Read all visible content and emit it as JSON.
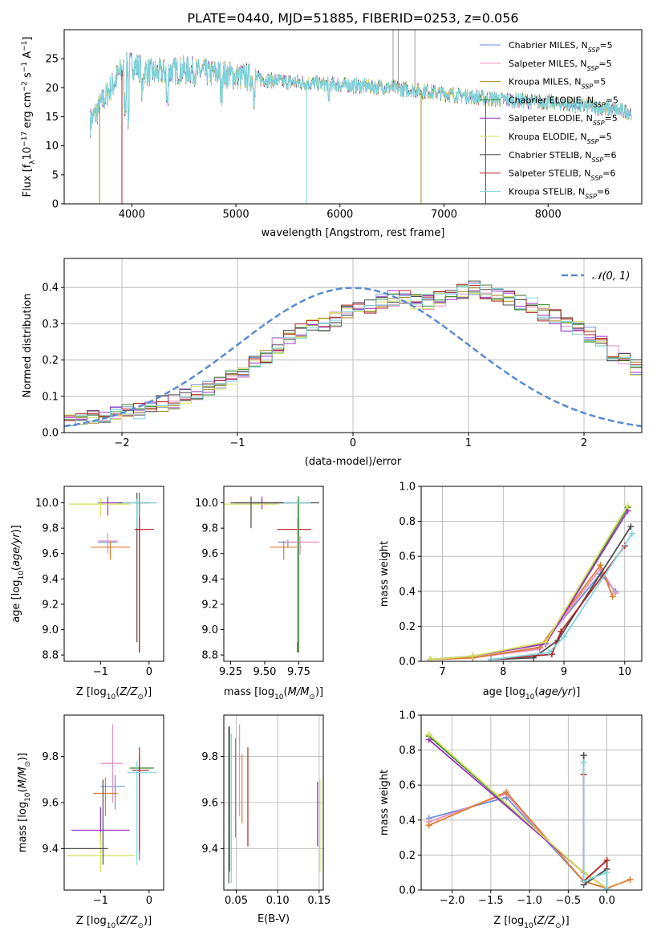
{
  "colors": {
    "series": [
      "#6d8fd6",
      "#e88fc0",
      "#a8861d",
      "#2e8b2e",
      "#9b30c9",
      "#d4e05a",
      "#4d4d4d",
      "#b22222",
      "#7fd3dc"
    ],
    "norm": "#5b8bd0",
    "extra_mass": [
      "#6d8fd6",
      "#e88fc0",
      "#e07b2b",
      "#2e8b2e",
      "#9b30c9",
      "#d4e05a",
      "#4d4d4d",
      "#b22222",
      "#7fd3dc"
    ]
  },
  "chart_data": [
    {
      "id": "spectrum",
      "type": "line",
      "title": "PLATE=0440, MJD=51885, FIBERID=0253, z=0.056",
      "xlabel": "wavelength [Angstrom, rest frame]",
      "ylabel": "Flux [f$_\\lambda$10$^{-17}$ erg cm$^{-2}$ s$^{-1}$ A$^{-1}$]",
      "ylabel_parts": {
        "a": "Flux [f",
        "b": "λ",
        "c": "10",
        "d": "−17",
        "e": " erg cm",
        "f": "−2",
        "g": " s",
        "h": "−1",
        "i": " A",
        "j": "−1",
        "k": "]"
      },
      "xlim": [
        3350,
        8900
      ],
      "ylim": [
        0,
        30
      ],
      "xticks": [
        4000,
        5000,
        6000,
        7000,
        8000
      ],
      "yticks": [
        0,
        5,
        10,
        15,
        20,
        25
      ],
      "grid": false,
      "legend_position": "top-right",
      "legend": [
        {
          "name": "Chabrier MILES, N",
          "sub": "SSP",
          "tail": "=5"
        },
        {
          "name": "Salpeter MILES, N",
          "sub": "SSP",
          "tail": "=5"
        },
        {
          "name": "Kroupa MILES, N",
          "sub": "SSP",
          "tail": "=5"
        },
        {
          "name": "Chabrier ELODIE, N",
          "sub": "SSP",
          "tail": "=5"
        },
        {
          "name": "Salpeter ELODIE, N",
          "sub": "SSP",
          "tail": "=5"
        },
        {
          "name": "Kroupa ELODIE, N",
          "sub": "SSP",
          "tail": "=5"
        },
        {
          "name": "Chabrier STELIB, N",
          "sub": "SSP",
          "tail": "=6"
        },
        {
          "name": "Salpeter STELIB, N",
          "sub": "SSP",
          "tail": "=6"
        },
        {
          "name": "Kroupa STELIB, N",
          "sub": "SSP",
          "tail": "=6"
        }
      ],
      "continuum": [
        [
          3600,
          14
        ],
        [
          3700,
          17
        ],
        [
          3800,
          20
        ],
        [
          3900,
          23
        ],
        [
          4000,
          24
        ],
        [
          4200,
          22.5
        ],
        [
          4500,
          23
        ],
        [
          4800,
          22.5
        ],
        [
          5000,
          22
        ],
        [
          5500,
          21
        ],
        [
          6000,
          20.5
        ],
        [
          6500,
          20
        ],
        [
          7000,
          19
        ],
        [
          7500,
          18
        ],
        [
          8000,
          17.5
        ],
        [
          8500,
          16.5
        ],
        [
          8800,
          15.8
        ]
      ],
      "spikes": [
        [
          3690,
          0
        ],
        [
          3905,
          0
        ],
        [
          5680,
          0
        ],
        [
          6780,
          0
        ],
        [
          7400,
          0
        ],
        [
          6560,
          30
        ],
        [
          6720,
          30
        ],
        [
          6510,
          30
        ]
      ]
    },
    {
      "id": "residuals",
      "type": "step",
      "xlabel": "(data-model)/error",
      "ylabel": "Normed distribution",
      "xlim": [
        -2.5,
        2.5
      ],
      "ylim": [
        0,
        0.48
      ],
      "xticks": [
        -2,
        -1,
        0,
        1,
        2
      ],
      "yticks": [
        0.0,
        0.1,
        0.2,
        0.3,
        0.4
      ],
      "grid": true,
      "legend_position": "top-right",
      "legend": [
        {
          "name": "𝒩(0, 1)"
        }
      ],
      "bin_width": 0.1,
      "bin_start": -2.5,
      "base_hist": [
        0.03,
        0.04,
        0.045,
        0.05,
        0.05,
        0.06,
        0.06,
        0.07,
        0.08,
        0.085,
        0.1,
        0.11,
        0.125,
        0.14,
        0.15,
        0.165,
        0.19,
        0.21,
        0.24,
        0.26,
        0.28,
        0.29,
        0.3,
        0.31,
        0.33,
        0.34,
        0.35,
        0.36,
        0.37,
        0.37,
        0.36,
        0.36,
        0.37,
        0.38,
        0.39,
        0.4,
        0.39,
        0.38,
        0.37,
        0.36,
        0.35,
        0.33,
        0.32,
        0.3,
        0.29,
        0.27,
        0.25,
        0.22,
        0.2,
        0.18,
        0.165,
        0.15,
        0.13,
        0.115,
        0.1,
        0.09,
        0.08,
        0.07,
        0.06,
        0.055,
        0.05,
        0.04,
        0.035,
        0.03,
        0.03,
        0.025,
        0.02,
        0.02,
        0.015,
        0.015
      ],
      "norm_curve": {
        "mu": 0,
        "sigma": 1
      }
    },
    {
      "id": "age_vs_Z",
      "type": "errorbar",
      "xlabel": "Z [log10(Z/Z☉)]",
      "xlabel_parts": {
        "a": "Z [log",
        "b": "10",
        "c": "(",
        "d": "Z/Z",
        "e": "⊙",
        "f": ")]"
      },
      "ylabel_parts": {
        "a": "age  [log",
        "b": "10",
        "c": "(",
        "d": "age/yr",
        "e": ")]"
      },
      "xlim": [
        -1.75,
        0.3
      ],
      "ylim": [
        8.75,
        10.13
      ],
      "xticks": [
        -1,
        0
      ],
      "yticks": [
        8.8,
        9.0,
        9.2,
        9.4,
        9.6,
        9.8,
        10.0
      ],
      "points": [
        {
          "x": -0.85,
          "xerr": [
            0.2,
            0.2
          ],
          "y": 9.69,
          "yerr": [
            0.04,
            0.01
          ]
        },
        {
          "x": -0.85,
          "xerr": [
            0.2,
            0.2
          ],
          "y": 9.7,
          "yerr": [
            0.1,
            0.06
          ]
        },
        {
          "x": -0.8,
          "xerr": [
            0.4,
            0.4
          ],
          "y": 9.65,
          "yerr": [
            0.1,
            0.05
          ]
        },
        {
          "x": -0.2,
          "xerr": [
            0.1,
            0.2
          ],
          "y": 10.0,
          "yerr": [
            1.18,
            0.08
          ]
        },
        {
          "x": -0.85,
          "xerr": [
            0.2,
            0.2
          ],
          "y": 10.0,
          "yerr": [
            0.1,
            0.05
          ]
        },
        {
          "x": -1.0,
          "xerr": [
            0.65,
            0.6
          ],
          "y": 9.99,
          "yerr": [
            0.1,
            0.05
          ]
        },
        {
          "x": -0.25,
          "xerr": [
            0.4,
            0.4
          ],
          "y": 10.0,
          "yerr": [
            1.1,
            0.08
          ]
        },
        {
          "x": -0.2,
          "xerr": [
            0.1,
            0.3
          ],
          "y": 9.79,
          "yerr": [
            0.97,
            0.1
          ]
        },
        {
          "x": -0.25,
          "xerr": [
            0.3,
            0.4
          ],
          "y": 10.0,
          "yerr": [
            0.2,
            0.03
          ]
        }
      ]
    },
    {
      "id": "age_vs_mass",
      "type": "errorbar",
      "xlabel_parts": {
        "a": "mass [log",
        "b": "10",
        "c": "(",
        "d": "M/M",
        "e": "⊙",
        "f": ")]"
      },
      "xlim": [
        9.2,
        9.93
      ],
      "ylim": [
        8.75,
        10.13
      ],
      "xticks": [
        9.25,
        9.5,
        9.75
      ],
      "xtick_labels": [
        "9.25",
        "9.50",
        "9.75"
      ],
      "yticks": [
        8.8,
        9.0,
        9.2,
        9.4,
        9.6,
        9.8,
        10.0
      ],
      "points": [
        {
          "x": 9.67,
          "xerr": [
            0.07,
            0.07
          ],
          "y": 9.69,
          "yerr": [
            0.04,
            0.02
          ]
        },
        {
          "x": 9.76,
          "xerr": [
            0.1,
            0.14
          ],
          "y": 9.69,
          "yerr": [
            0.1,
            0.05
          ]
        },
        {
          "x": 9.64,
          "xerr": [
            0.1,
            0.1
          ],
          "y": 9.65,
          "yerr": [
            0.1,
            0.05
          ]
        },
        {
          "x": 9.75,
          "xerr": [
            0.35,
            0.1
          ],
          "y": 10.0,
          "yerr": [
            1.18,
            0.05
          ]
        },
        {
          "x": 9.48,
          "xerr": [
            0.2,
            0.2
          ],
          "y": 10.0,
          "yerr": [
            0.05,
            0.05
          ]
        },
        {
          "x": 9.4,
          "xerr": [
            0.2,
            0.2
          ],
          "y": 9.99,
          "yerr": [
            0.15,
            0.06
          ]
        },
        {
          "x": 9.4,
          "xerr": [
            0.15,
            0.5
          ],
          "y": 10.0,
          "yerr": [
            0.2,
            0.05
          ]
        },
        {
          "x": 9.74,
          "xerr": [
            0.15,
            0.1
          ],
          "y": 9.79,
          "yerr": [
            0.97,
            0.1
          ]
        },
        {
          "x": 9.74,
          "xerr": [
            0.1,
            0.1
          ],
          "y": 10.0,
          "yerr": [
            1.1,
            0.03
          ]
        }
      ]
    },
    {
      "id": "weight_vs_age",
      "type": "line",
      "ylabel": "mass weight",
      "xlabel_parts": {
        "a": "age  [log",
        "b": "10",
        "c": "(",
        "d": "age/yr",
        "e": ")]"
      },
      "xlim": [
        6.65,
        10.28
      ],
      "ylim": [
        0,
        1.0
      ],
      "xticks": [
        7,
        8,
        9,
        10
      ],
      "yticks": [
        0.0,
        0.2,
        0.4,
        0.6,
        0.8,
        1.0
      ],
      "grid": true,
      "series": [
        {
          "x": [
            6.8,
            7.5,
            8.6,
            9.6,
            9.85
          ],
          "y": [
            0.01,
            0.02,
            0.08,
            0.5,
            0.4
          ]
        },
        {
          "x": [
            6.8,
            7.5,
            8.6,
            9.6,
            9.85
          ],
          "y": [
            0.01,
            0.02,
            0.07,
            0.53,
            0.39
          ]
        },
        {
          "x": [
            6.8,
            7.5,
            8.6,
            9.6,
            9.8
          ],
          "y": [
            0.01,
            0.02,
            0.08,
            0.55,
            0.37
          ]
        },
        {
          "x": [
            6.8,
            7.5,
            8.7,
            10.05
          ],
          "y": [
            0.01,
            0.03,
            0.1,
            0.88
          ]
        },
        {
          "x": [
            6.8,
            7.5,
            8.7,
            10.05
          ],
          "y": [
            0.01,
            0.03,
            0.1,
            0.86
          ]
        },
        {
          "x": [
            6.8,
            7.5,
            8.7,
            10.05
          ],
          "y": [
            0.01,
            0.03,
            0.11,
            0.89
          ]
        },
        {
          "x": [
            7.8,
            8.5,
            8.9,
            10.1
          ],
          "y": [
            0.01,
            0.02,
            0.12,
            0.77
          ]
        },
        {
          "x": [
            7.8,
            8.8,
            8.95,
            10.0
          ],
          "y": [
            0.01,
            0.04,
            0.17,
            0.66
          ]
        },
        {
          "x": [
            7.8,
            8.75,
            9.0,
            10.12
          ],
          "y": [
            0.01,
            0.05,
            0.14,
            0.73
          ]
        }
      ]
    },
    {
      "id": "mass_vs_Z",
      "type": "errorbar",
      "xlabel_parts": {
        "a": "Z [log",
        "b": "10",
        "c": "(",
        "d": "Z/Z",
        "e": "⊙",
        "f": ")]"
      },
      "ylabel_parts": {
        "a": "mass [log",
        "b": "10",
        "c": "(",
        "d": "M/M",
        "e": "⊙",
        "f": ")]"
      },
      "xlim": [
        -1.75,
        0.3
      ],
      "ylim": [
        9.22,
        9.98
      ],
      "xticks": [
        -1,
        0
      ],
      "yticks": [
        9.4,
        9.6,
        9.8
      ],
      "points": [
        {
          "x": -0.7,
          "xerr": [
            0.3,
            0.2
          ],
          "y": 9.67,
          "yerr": [
            0.1,
            0.05
          ]
        },
        {
          "x": -0.75,
          "xerr": [
            0.25,
            0.2
          ],
          "y": 9.77,
          "yerr": [
            0.17,
            0.17
          ]
        },
        {
          "x": -0.9,
          "xerr": [
            0.25,
            0.25
          ],
          "y": 9.64,
          "yerr": [
            0.1,
            0.07
          ]
        },
        {
          "x": -0.2,
          "xerr": [
            0.2,
            0.3
          ],
          "y": 9.75,
          "yerr": [
            0.4,
            0.05
          ]
        },
        {
          "x": -1.0,
          "xerr": [
            0.6,
            0.6
          ],
          "y": 9.48,
          "yerr": [
            0.05,
            0.1
          ]
        },
        {
          "x": -1.0,
          "xerr": [
            0.7,
            0.7
          ],
          "y": 9.37,
          "yerr": [
            0.07,
            0.1
          ]
        },
        {
          "x": -0.95,
          "xerr": [
            0.8,
            0.1
          ],
          "y": 9.4,
          "yerr": [
            0.07,
            0.3
          ]
        },
        {
          "x": -0.2,
          "xerr": [
            0.15,
            0.2
          ],
          "y": 9.74,
          "yerr": [
            0.35,
            0.1
          ]
        },
        {
          "x": -0.25,
          "xerr": [
            0.2,
            0.4
          ],
          "y": 9.73,
          "yerr": [
            0.4,
            0.05
          ]
        }
      ]
    },
    {
      "id": "mass_vs_EBV",
      "type": "errorbar",
      "xlabel": "E(B-V)",
      "xlim": [
        0.035,
        0.155
      ],
      "ylim": [
        9.22,
        9.98
      ],
      "xticks": [
        0.05,
        0.1,
        0.15
      ],
      "xtick_labels": [
        "0.05",
        "0.10",
        "0.15"
      ],
      "yticks": [
        9.4,
        9.6,
        9.8
      ],
      "grid": true,
      "points": [
        {
          "x": 0.049,
          "y": 9.65,
          "yerr": [
            0.2,
            0.23
          ]
        },
        {
          "x": 0.054,
          "y": 9.74,
          "yerr": [
            0.2,
            0.2
          ]
        },
        {
          "x": 0.057,
          "y": 9.66,
          "yerr": [
            0.15,
            0.15
          ]
        },
        {
          "x": 0.042,
          "y": 9.6,
          "yerr": [
            0.3,
            0.33
          ]
        },
        {
          "x": 0.148,
          "y": 9.55,
          "yerr": [
            0.14,
            0.14
          ]
        },
        {
          "x": 0.151,
          "y": 9.5,
          "yerr": [
            0.2,
            0.2
          ]
        },
        {
          "x": 0.041,
          "y": 9.6,
          "yerr": [
            0.35,
            0.33
          ]
        },
        {
          "x": 0.064,
          "y": 9.63,
          "yerr": [
            0.22,
            0.21
          ]
        },
        {
          "x": 0.044,
          "y": 9.55,
          "yerr": [
            0.3,
            0.35
          ]
        }
      ]
    },
    {
      "id": "weight_vs_Z",
      "type": "line",
      "ylabel": "mass weight",
      "xlabel_parts": {
        "a": "Z [log",
        "b": "10",
        "c": "(",
        "d": "Z/Z",
        "e": "⊙",
        "f": ")]"
      },
      "xlim": [
        -2.4,
        0.45
      ],
      "ylim": [
        0,
        1.0
      ],
      "xticks": [
        -2.0,
        -1.5,
        -1.0,
        -0.5,
        0.0
      ],
      "xtick_labels": [
        "−2.0",
        "−1.5",
        "−1.0",
        "−0.5",
        "0.0"
      ],
      "yticks": [
        0.0,
        0.2,
        0.4,
        0.6,
        0.8,
        1.0
      ],
      "grid": true,
      "series": [
        {
          "x": [
            -2.3,
            -1.3,
            -0.3,
            0.0
          ],
          "y": [
            0.41,
            0.53,
            0.05,
            0.01
          ]
        },
        {
          "x": [
            -2.3,
            -1.3,
            -0.3,
            0.0
          ],
          "y": [
            0.39,
            0.55,
            0.05,
            0.01
          ]
        },
        {
          "x": [
            -2.3,
            -1.3,
            -0.3,
            0.0,
            0.3
          ],
          "y": [
            0.37,
            0.56,
            0.05,
            0.01,
            0.06
          ]
        },
        {
          "x": [
            -2.3,
            -0.3,
            0.0
          ],
          "y": [
            0.88,
            0.1,
            0.01
          ]
        },
        {
          "x": [
            -2.3,
            -0.3,
            0.0
          ],
          "y": [
            0.86,
            0.1,
            0.01
          ]
        },
        {
          "x": [
            -2.3,
            -0.3,
            0.0
          ],
          "y": [
            0.89,
            0.1,
            0.01
          ]
        },
        {
          "x": [
            -0.3,
            -0.3,
            0.0,
            0.0
          ],
          "y": [
            0.77,
            0.03,
            0.12,
            0.01
          ]
        },
        {
          "x": [
            -0.3,
            -0.3,
            0.0,
            0.0
          ],
          "y": [
            0.66,
            0.05,
            0.17,
            0.01
          ]
        },
        {
          "x": [
            -0.3,
            -0.3,
            0.0,
            0.0
          ],
          "y": [
            0.73,
            0.05,
            0.1,
            0.01
          ]
        }
      ]
    }
  ]
}
